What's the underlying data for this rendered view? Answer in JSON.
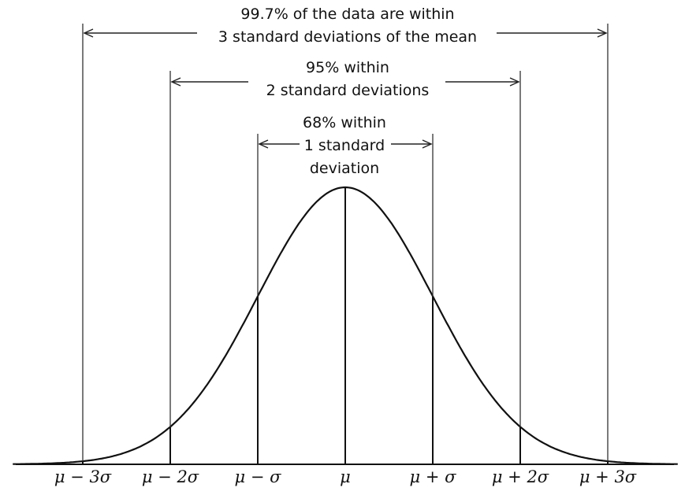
{
  "annotations": {
    "band3": [
      "99.7% of the data are within",
      "3 standard deviations of the mean"
    ],
    "band2": [
      "95% within",
      "2 standard deviations"
    ],
    "band1": [
      "68% within",
      "1 standard",
      "deviation"
    ]
  },
  "chart_data": {
    "type": "line",
    "description_type": "normal-distribution-diagram",
    "x_ticks": [
      "μ − 3σ",
      "μ − 2σ",
      "μ − σ",
      "μ",
      "μ + σ",
      "μ + 2σ",
      "μ + 3σ"
    ],
    "x_tick_values_sigma": [
      -3,
      -2,
      -1,
      0,
      1,
      2,
      3
    ],
    "intervals": [
      {
        "from_sigma": -1,
        "to_sigma": 1,
        "percent": 68
      },
      {
        "from_sigma": -2,
        "to_sigma": 2,
        "percent": 95
      },
      {
        "from_sigma": -3,
        "to_sigma": 3,
        "percent": 99.7
      }
    ],
    "line_color": "#111111",
    "grid": false
  }
}
